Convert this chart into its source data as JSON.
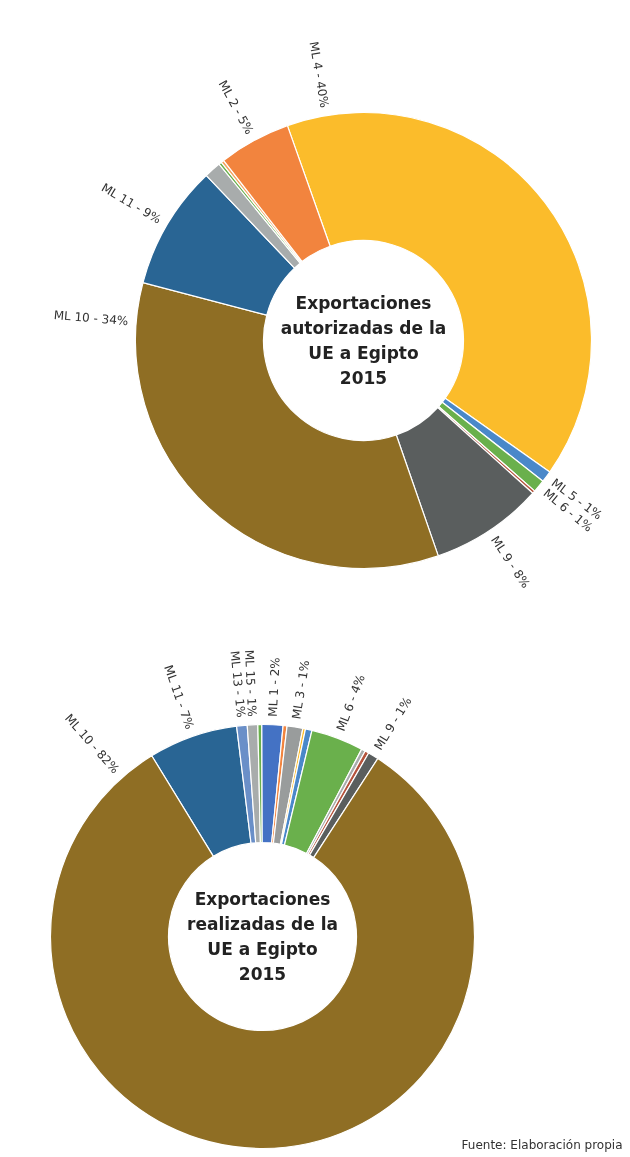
{
  "chart_data": [
    {
      "type": "donut",
      "title": "Exportaciones\nautorizadas de la\nUE a Egipto\n2015",
      "categories": [
        "ML 4",
        "ML 5",
        "ML 6",
        null,
        "ML 9",
        "ML 10",
        "ML 11",
        null,
        null,
        null,
        "ML 2"
      ],
      "values": [
        40.2,
        0.8,
        0.9,
        0.2,
        8.0,
        34.4,
        8.8,
        1.2,
        0.2,
        0.2,
        5.1
      ],
      "value_labels": [
        "40%",
        "1%",
        "1%",
        null,
        "8%",
        "34%",
        "9%",
        null,
        null,
        null,
        "5%"
      ],
      "colors": [
        "#fbbc2b",
        "#4a88c9",
        "#6ab04c",
        "#b5533c",
        "#5a5e5e",
        "#8f6e24",
        "#296594",
        "#a8acac",
        "#6ab04c",
        "#f4a460",
        "#f2843e"
      ]
    },
    {
      "type": "donut",
      "title": "Exportaciones\nrealizadas de la\nUE a Egipto\n2015",
      "categories": [
        "ML 11",
        "ML 13",
        "ML 15",
        null,
        "ML 1",
        null,
        "ML 3",
        null,
        null,
        "ML 6",
        null,
        null,
        "ML 9",
        "ML 10"
      ],
      "values": [
        6.8,
        0.8,
        0.8,
        0.3,
        1.6,
        0.3,
        1.2,
        0.2,
        0.5,
        4.0,
        0.3,
        0.3,
        0.8,
        82.1
      ],
      "value_labels": [
        "7%",
        "1%",
        "1%",
        null,
        "2%",
        null,
        "1%",
        null,
        null,
        "4%",
        null,
        null,
        "1%",
        "82%"
      ],
      "colors": [
        "#296594",
        "#6a8fc8",
        "#a8acac",
        "#6ab04c",
        "#4472c4",
        "#f2843e",
        "#999c9c",
        "#fbbc2b",
        "#4a88c9",
        "#6ab04c",
        "#a8acac",
        "#b5533c",
        "#5a5e5e",
        "#8f6e24"
      ],
      "annotations": [
        "Fuente: Elaboración propia"
      ]
    }
  ]
}
